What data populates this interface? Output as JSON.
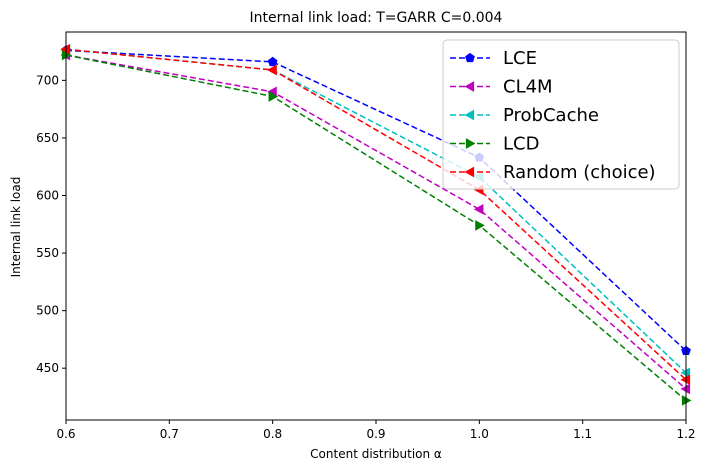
{
  "chart_data": {
    "type": "line",
    "title": "Internal link load: T=GARR C=0.004",
    "xlabel": "Content distribution α",
    "ylabel": "Internal link load",
    "xlim": [
      0.6,
      1.2
    ],
    "ylim": [
      405,
      742
    ],
    "xticks": [
      "0.6",
      "0.7",
      "0.8",
      "0.9",
      "1.0",
      "1.1",
      "1.2"
    ],
    "yticks": [
      "450",
      "500",
      "550",
      "600",
      "650",
      "700"
    ],
    "grid": false,
    "legend_position": "top-right",
    "x": [
      0.6,
      0.8,
      1.0,
      1.2
    ],
    "series": [
      {
        "name": "LCE",
        "color": "#0000ff",
        "marker": "pentagon",
        "values": [
          726,
          716,
          633,
          465
        ]
      },
      {
        "name": "CL4M",
        "color": "#bf00bf",
        "marker": "triangle-left",
        "values": [
          722,
          690,
          588,
          432
        ]
      },
      {
        "name": "ProbCache",
        "color": "#00bfbf",
        "marker": "triangle-left",
        "values": [
          727,
          709,
          616,
          446
        ]
      },
      {
        "name": "LCD",
        "color": "#008000",
        "marker": "triangle-right",
        "values": [
          722,
          686,
          574,
          422
        ]
      },
      {
        "name": "Random (choice)",
        "color": "#ff0000",
        "marker": "triangle-left",
        "values": [
          727,
          709,
          605,
          440
        ]
      }
    ]
  }
}
